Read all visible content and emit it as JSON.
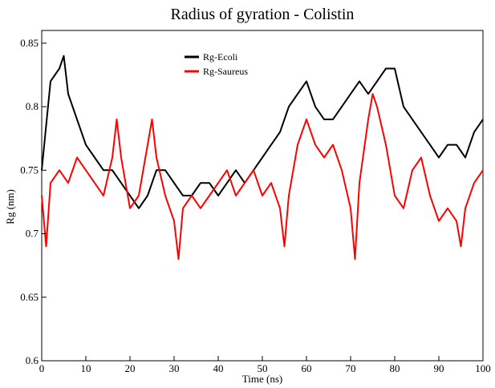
{
  "chart_data": {
    "type": "line",
    "title": "Radius of gyration - Colistin",
    "xlabel": "Time (ns)",
    "ylabel": "Rg (nm)",
    "xlim": [
      0,
      100
    ],
    "ylim": [
      0.6,
      0.86
    ],
    "xticks": [
      "0",
      "10",
      "20",
      "30",
      "40",
      "50",
      "60",
      "70",
      "80",
      "90",
      "100"
    ],
    "yticks": [
      "0.6",
      "0.65",
      "0.7",
      "0.75",
      "0.8",
      "0.85"
    ],
    "grid": false,
    "legend_position": "top-center",
    "series": [
      {
        "name": "Rg-Ecoli",
        "color": "#000000",
        "x": [
          0,
          2,
          4,
          5,
          6,
          8,
          10,
          12,
          14,
          16,
          18,
          20,
          22,
          24,
          26,
          28,
          30,
          32,
          34,
          36,
          38,
          40,
          42,
          44,
          46,
          48,
          50,
          52,
          54,
          56,
          58,
          60,
          62,
          64,
          66,
          68,
          70,
          72,
          74,
          76,
          78,
          80,
          82,
          84,
          86,
          88,
          90,
          92,
          94,
          96,
          98,
          100
        ],
        "y": [
          0.75,
          0.82,
          0.83,
          0.84,
          0.81,
          0.79,
          0.77,
          0.76,
          0.75,
          0.75,
          0.74,
          0.73,
          0.72,
          0.73,
          0.75,
          0.75,
          0.74,
          0.73,
          0.73,
          0.74,
          0.74,
          0.73,
          0.74,
          0.75,
          0.74,
          0.75,
          0.76,
          0.77,
          0.78,
          0.8,
          0.81,
          0.82,
          0.8,
          0.79,
          0.79,
          0.8,
          0.81,
          0.82,
          0.81,
          0.82,
          0.83,
          0.83,
          0.8,
          0.79,
          0.78,
          0.77,
          0.76,
          0.77,
          0.77,
          0.76,
          0.78,
          0.79
        ]
      },
      {
        "name": "Rg-Saureus",
        "color": "#ff0000",
        "x": [
          0,
          1,
          2,
          4,
          6,
          8,
          10,
          12,
          14,
          16,
          17,
          18,
          20,
          22,
          24,
          25,
          26,
          28,
          30,
          31,
          32,
          34,
          36,
          38,
          40,
          42,
          44,
          46,
          48,
          50,
          52,
          54,
          55,
          56,
          58,
          60,
          62,
          64,
          66,
          68,
          70,
          71,
          72,
          74,
          75,
          76,
          78,
          80,
          82,
          84,
          86,
          88,
          90,
          92,
          94,
          95,
          96,
          98,
          100
        ],
        "y": [
          0.73,
          0.69,
          0.74,
          0.75,
          0.74,
          0.76,
          0.75,
          0.74,
          0.73,
          0.76,
          0.79,
          0.76,
          0.72,
          0.73,
          0.77,
          0.79,
          0.76,
          0.73,
          0.71,
          0.68,
          0.72,
          0.73,
          0.72,
          0.73,
          0.74,
          0.75,
          0.73,
          0.74,
          0.75,
          0.73,
          0.74,
          0.72,
          0.69,
          0.73,
          0.77,
          0.79,
          0.77,
          0.76,
          0.77,
          0.75,
          0.72,
          0.68,
          0.74,
          0.79,
          0.81,
          0.8,
          0.77,
          0.73,
          0.72,
          0.75,
          0.76,
          0.73,
          0.71,
          0.72,
          0.71,
          0.69,
          0.72,
          0.74,
          0.75
        ]
      }
    ]
  }
}
